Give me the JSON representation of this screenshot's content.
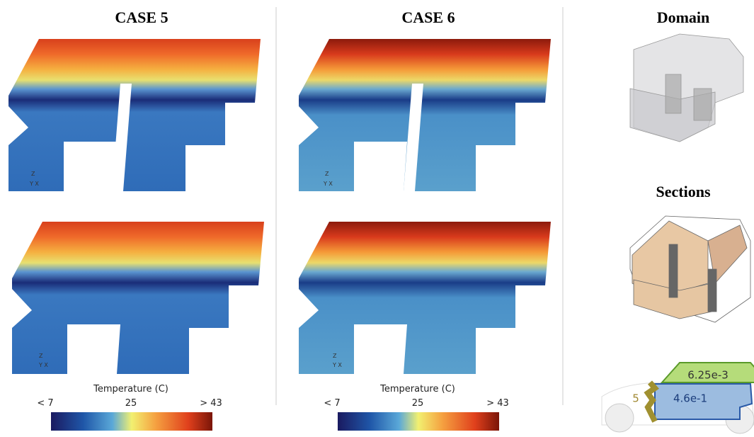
{
  "panels": [
    {
      "title": "CASE 5",
      "axis_labels": [
        "Z",
        "Y X",
        "Z",
        "Y X"
      ],
      "colorbar": {
        "title": "Temperature (C)",
        "labels": [
          "< 7",
          "25",
          "> 43"
        ]
      }
    },
    {
      "title": "CASE 6",
      "axis_labels": [
        "Z",
        "Y X",
        "Z",
        "Y X"
      ],
      "colorbar": {
        "title": "Temperature (C)",
        "labels": [
          "< 7",
          "25",
          "> 43"
        ]
      }
    }
  ],
  "domain": {
    "title": "Domain"
  },
  "sections": {
    "title": "Sections",
    "labels": [
      "6.25e-3",
      "4.6e-1",
      "5"
    ]
  }
}
